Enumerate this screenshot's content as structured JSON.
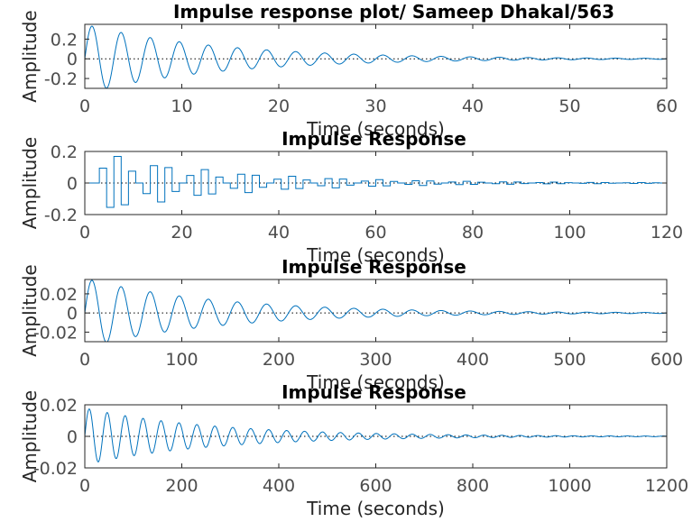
{
  "figure": {
    "background": "#ffffff",
    "axis_color": "#262626",
    "line_color": "#0072bd"
  },
  "chart_data": [
    {
      "type": "line",
      "title": "Impulse response plot/ Sameep Dhakal/563",
      "xlabel": "Time (seconds)",
      "ylabel": "Amplitude",
      "xlim": [
        0,
        60
      ],
      "ylim": [
        -0.3,
        0.35
      ],
      "xticks": [
        0,
        10,
        20,
        30,
        40,
        50,
        60
      ],
      "xtick_labels": [
        "0",
        "10",
        "20",
        "30",
        "40",
        "50",
        "60"
      ],
      "yticks": [
        -0.2,
        0,
        0.2
      ],
      "ytick_labels": [
        "-0.2",
        "0",
        "0.2"
      ],
      "discrete": false,
      "response": {
        "amplitude": 0.35,
        "decay_rate": 0.072,
        "period": 3.0,
        "phase_shift": 0,
        "x_end": 60,
        "dt": 0.05
      },
      "zero_line": true,
      "grid": false
    },
    {
      "type": "line",
      "title": "Impulse Response",
      "xlabel": "Time (seconds)",
      "ylabel": "Amplitude",
      "xlim": [
        0,
        120
      ],
      "ylim": [
        -0.2,
        0.2
      ],
      "xticks": [
        0,
        20,
        40,
        60,
        80,
        100,
        120
      ],
      "xtick_labels": [
        "0",
        "20",
        "40",
        "60",
        "80",
        "100",
        "120"
      ],
      "yticks": [
        -0.2,
        0,
        0.2
      ],
      "ytick_labels": [
        "-0.2",
        "0",
        "0.2"
      ],
      "discrete": true,
      "sample_time": 1.5,
      "response": {
        "amplitude": 0.2,
        "decay_rate": 0.038,
        "period": 3.6,
        "phase_shift": 1.5,
        "x_end": 120
      },
      "zero_line": true,
      "grid": false
    },
    {
      "type": "line",
      "title": "Impulse Response",
      "xlabel": "Time (seconds)",
      "ylabel": "Amplitude",
      "xlim": [
        0,
        600
      ],
      "ylim": [
        -0.03,
        0.035
      ],
      "xticks": [
        0,
        100,
        200,
        300,
        400,
        500,
        600
      ],
      "xtick_labels": [
        "0",
        "100",
        "200",
        "300",
        "400",
        "500",
        "600"
      ],
      "yticks": [
        -0.02,
        0,
        0.02
      ],
      "ytick_labels": [
        "-0.02",
        "0",
        "0.02"
      ],
      "discrete": false,
      "response": {
        "amplitude": 0.036,
        "decay_rate": 0.0072,
        "period": 30,
        "phase_shift": 0,
        "x_end": 600,
        "dt": 0.5
      },
      "zero_line": true,
      "grid": false
    },
    {
      "type": "line",
      "title": "Impulse Response",
      "xlabel": "Time (seconds)",
      "ylabel": "Amplitude",
      "xlim": [
        0,
        1200
      ],
      "ylim": [
        -0.02,
        0.02
      ],
      "xticks": [
        0,
        200,
        400,
        600,
        800,
        1000,
        1200
      ],
      "xtick_labels": [
        "0",
        "200",
        "400",
        "600",
        "800",
        "1000",
        "1200"
      ],
      "yticks": [
        -0.02,
        0,
        0.02
      ],
      "ytick_labels": [
        "-0.02",
        "0",
        "0.02"
      ],
      "discrete": false,
      "response": {
        "amplitude": 0.018,
        "decay_rate": 0.0038,
        "period": 37,
        "phase_shift": 0,
        "x_end": 1200,
        "dt": 1
      },
      "zero_line": true,
      "grid": false
    }
  ]
}
